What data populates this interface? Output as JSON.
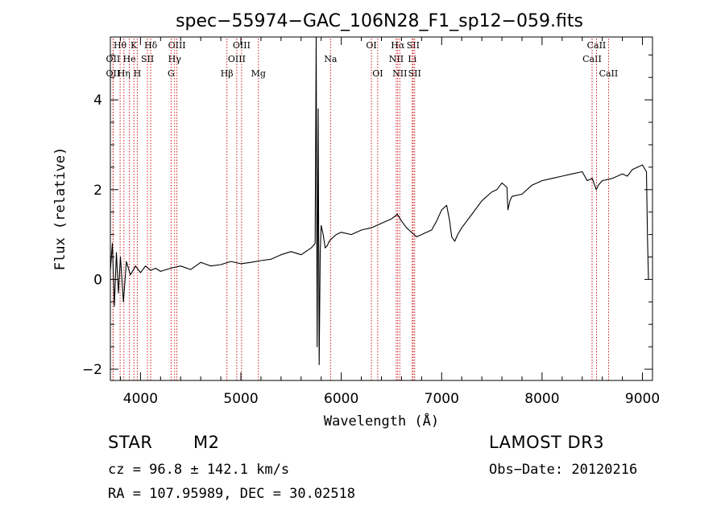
{
  "chart_data": {
    "type": "line",
    "title": "spec−55974−GAC_106N28_F1_sp12−059.fits",
    "xlabel": "Wavelength (Å)",
    "ylabel": "Flux (relative)",
    "xlim": [
      3700,
      9100
    ],
    "ylim": [
      -2.25,
      5.4
    ],
    "xticks": [
      4000,
      5000,
      6000,
      7000,
      8000,
      9000
    ],
    "xtick_labels": [
      "4000",
      "5000",
      "6000",
      "7000",
      "8000",
      "9000"
    ],
    "yticks": [
      -2,
      0,
      2,
      4
    ],
    "ytick_labels": [
      "−2",
      "0",
      "2",
      "4"
    ],
    "series": [
      {
        "name": "spectrum",
        "x": [
          3700,
          3720,
          3740,
          3760,
          3780,
          3800,
          3830,
          3860,
          3900,
          3950,
          4000,
          4050,
          4100,
          4150,
          4200,
          4300,
          4400,
          4500,
          4600,
          4700,
          4800,
          4900,
          5000,
          5100,
          5200,
          5300,
          5400,
          5500,
          5600,
          5700,
          5740,
          5750,
          5760,
          5770,
          5780,
          5790,
          5800,
          5820,
          5840,
          5860,
          5880,
          5900,
          5950,
          6000,
          6100,
          6200,
          6300,
          6400,
          6500,
          6560,
          6600,
          6650,
          6700,
          6750,
          6800,
          6850,
          6900,
          6950,
          7000,
          7050,
          7080,
          7100,
          7130,
          7160,
          7200,
          7300,
          7400,
          7500,
          7550,
          7600,
          7650,
          7660,
          7680,
          7700,
          7800,
          7900,
          8000,
          8100,
          8200,
          8300,
          8400,
          8450,
          8500,
          8540,
          8560,
          8600,
          8700,
          8800,
          8850,
          8900,
          8950,
          9000,
          9040,
          9050,
          9060
        ],
        "y": [
          0.2,
          0.8,
          -0.6,
          0.6,
          -0.3,
          0.5,
          -0.5,
          0.4,
          0.1,
          0.3,
          0.15,
          0.3,
          0.2,
          0.25,
          0.18,
          0.25,
          0.3,
          0.22,
          0.38,
          0.3,
          0.33,
          0.4,
          0.35,
          0.38,
          0.42,
          0.45,
          0.55,
          0.62,
          0.55,
          0.7,
          0.8,
          5.4,
          -1.5,
          3.8,
          -1.9,
          0.6,
          1.2,
          1.0,
          0.7,
          0.75,
          0.85,
          0.9,
          1.0,
          1.05,
          1.0,
          1.1,
          1.15,
          1.25,
          1.35,
          1.45,
          1.3,
          1.15,
          1.05,
          0.95,
          1.0,
          1.05,
          1.1,
          1.3,
          1.55,
          1.65,
          1.3,
          0.95,
          0.85,
          1.0,
          1.15,
          1.45,
          1.75,
          1.95,
          2.0,
          2.15,
          2.05,
          1.55,
          1.75,
          1.85,
          1.9,
          2.1,
          2.2,
          2.25,
          2.3,
          2.35,
          2.4,
          2.2,
          2.25,
          2.0,
          2.1,
          2.2,
          2.25,
          2.35,
          2.3,
          2.45,
          2.5,
          2.55,
          2.4,
          0.9,
          0.0
        ]
      }
    ],
    "lines": [
      {
        "label": "Hθ",
        "x": 3797,
        "row": 1
      },
      {
        "label": "OII",
        "x": 3727,
        "row": 2
      },
      {
        "label": "OII",
        "x": 3727,
        "row": 3
      },
      {
        "label": "He",
        "x": 3889,
        "row": 2
      },
      {
        "label": "Hη",
        "x": 3835,
        "row": 3
      },
      {
        "label": "K",
        "x": 3934,
        "row": 1
      },
      {
        "label": "H",
        "x": 3968,
        "row": 3
      },
      {
        "label": "SII",
        "x": 4070,
        "row": 2
      },
      {
        "label": "Hδ",
        "x": 4102,
        "row": 1
      },
      {
        "label": "OIII",
        "x": 4363,
        "row": 1
      },
      {
        "label": "Hγ",
        "x": 4340,
        "row": 2
      },
      {
        "label": "G",
        "x": 4305,
        "row": 3
      },
      {
        "label": "Hβ",
        "x": 4861,
        "row": 3
      },
      {
        "label": "OIII",
        "x": 4959,
        "row": 2
      },
      {
        "label": "OIII",
        "x": 5007,
        "row": 1
      },
      {
        "label": "Mg",
        "x": 5175,
        "row": 3
      },
      {
        "label": "Na",
        "x": 5893,
        "row": 2
      },
      {
        "label": "OI",
        "x": 6300,
        "row": 1
      },
      {
        "label": "OI",
        "x": 6363,
        "row": 3
      },
      {
        "label": "NII",
        "x": 6548,
        "row": 2
      },
      {
        "label": "Hα",
        "x": 6563,
        "row": 1
      },
      {
        "label": "NII",
        "x": 6583,
        "row": 3
      },
      {
        "label": "Li",
        "x": 6707,
        "row": 2
      },
      {
        "label": "SII",
        "x": 6716,
        "row": 1
      },
      {
        "label": "SII",
        "x": 6731,
        "row": 3
      },
      {
        "label": "CaII",
        "x": 8498,
        "row": 2
      },
      {
        "label": "CaII",
        "x": 8542,
        "row": 1
      },
      {
        "label": "CaII",
        "x": 8662,
        "row": 3
      }
    ]
  },
  "info": {
    "class_label": "STAR",
    "subclass": "M2",
    "survey": "LAMOST DR3",
    "cz": "cz = 96.8 ± 142.1 km/s",
    "obs_date": "Obs−Date: 20120216",
    "coords": "RA = 107.95989, DEC =  30.02518"
  },
  "colors": {
    "spectrum": "#000000",
    "lines": "#cc0000",
    "axes": "#000000"
  }
}
